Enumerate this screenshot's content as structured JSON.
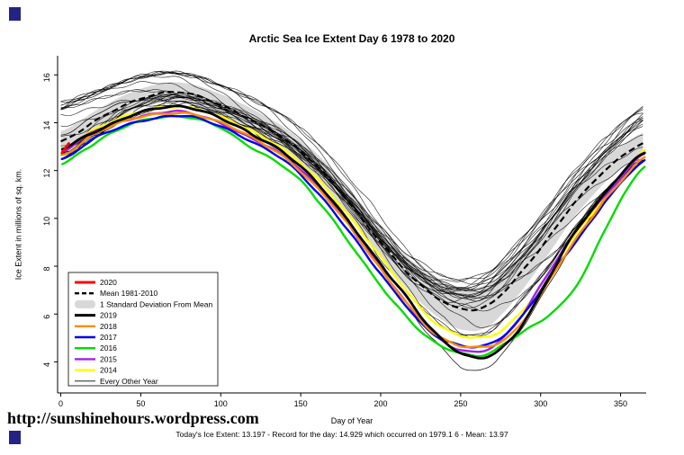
{
  "corner_mark_color": "#232384",
  "chart_data": {
    "type": "line",
    "title": "Arctic Sea Ice Extent Day 6 1978 to 2020",
    "xlabel": "Day of Year",
    "ylabel": "Ice Extent in millions of sq. km.",
    "xlim": [
      -2,
      366
    ],
    "ylim": [
      2.7,
      16.8
    ],
    "xticks": [
      0,
      50,
      100,
      150,
      200,
      250,
      300,
      350
    ],
    "yticks": [
      4,
      6,
      8,
      10,
      12,
      14,
      16
    ],
    "grid": false,
    "legend_position": "left-middle",
    "band": {
      "name": "1 Standard Deviation From Mean",
      "color": "#D8D8D8",
      "sd_points": [
        [
          0,
          0.45
        ],
        [
          50,
          0.4
        ],
        [
          100,
          0.45
        ],
        [
          150,
          0.5
        ],
        [
          200,
          0.6
        ],
        [
          230,
          0.75
        ],
        [
          255,
          0.9
        ],
        [
          275,
          0.85
        ],
        [
          300,
          0.7
        ],
        [
          330,
          0.55
        ],
        [
          365,
          0.45
        ]
      ]
    },
    "mean": {
      "name": "Mean 1981-2010",
      "style": "dashed",
      "color": "#000000",
      "points": [
        [
          0,
          13.2
        ],
        [
          25,
          14.2
        ],
        [
          45,
          14.9
        ],
        [
          65,
          15.25
        ],
        [
          80,
          15.2
        ],
        [
          100,
          14.75
        ],
        [
          120,
          14.1
        ],
        [
          140,
          13.3
        ],
        [
          160,
          12.2
        ],
        [
          180,
          10.7
        ],
        [
          200,
          9.0
        ],
        [
          220,
          7.5
        ],
        [
          240,
          6.5
        ],
        [
          255,
          6.2
        ],
        [
          265,
          6.3
        ],
        [
          275,
          6.8
        ],
        [
          290,
          7.9
        ],
        [
          305,
          9.2
        ],
        [
          320,
          10.6
        ],
        [
          340,
          12.0
        ],
        [
          365,
          13.15
        ]
      ]
    },
    "series": [
      {
        "name": "2014",
        "color": "#FFFF00",
        "width": 2.4,
        "points": [
          [
            1,
            12.9
          ],
          [
            20,
            13.7
          ],
          [
            40,
            14.25
          ],
          [
            60,
            14.6
          ],
          [
            80,
            14.65
          ],
          [
            100,
            14.25
          ],
          [
            120,
            13.6
          ],
          [
            140,
            12.85
          ],
          [
            160,
            11.7
          ],
          [
            180,
            10.1
          ],
          [
            200,
            8.4
          ],
          [
            215,
            7.1
          ],
          [
            230,
            5.9
          ],
          [
            245,
            5.2
          ],
          [
            258,
            5.0
          ],
          [
            270,
            5.1
          ],
          [
            282,
            5.7
          ],
          [
            295,
            6.7
          ],
          [
            310,
            8.2
          ],
          [
            325,
            9.6
          ],
          [
            340,
            10.9
          ],
          [
            365,
            12.85
          ]
        ]
      },
      {
        "name": "2015",
        "color": "#A020F0",
        "width": 2.4,
        "points": [
          [
            1,
            12.8
          ],
          [
            20,
            13.6
          ],
          [
            40,
            14.1
          ],
          [
            60,
            14.4
          ],
          [
            75,
            14.45
          ],
          [
            95,
            14.1
          ],
          [
            115,
            13.5
          ],
          [
            135,
            12.8
          ],
          [
            155,
            11.7
          ],
          [
            175,
            10.2
          ],
          [
            195,
            8.4
          ],
          [
            210,
            7.0
          ],
          [
            225,
            5.7
          ],
          [
            240,
            4.8
          ],
          [
            252,
            4.5
          ],
          [
            263,
            4.45
          ],
          [
            275,
            4.9
          ],
          [
            288,
            5.9
          ],
          [
            302,
            7.4
          ],
          [
            316,
            8.9
          ],
          [
            330,
            10.2
          ],
          [
            345,
            11.3
          ],
          [
            365,
            12.7
          ]
        ]
      },
      {
        "name": "2016",
        "color": "#00DD00",
        "width": 2.4,
        "points": [
          [
            1,
            12.3
          ],
          [
            15,
            12.9
          ],
          [
            30,
            13.5
          ],
          [
            45,
            13.95
          ],
          [
            60,
            14.2
          ],
          [
            80,
            14.25
          ],
          [
            100,
            13.8
          ],
          [
            115,
            13.1
          ],
          [
            130,
            12.55
          ],
          [
            145,
            11.9
          ],
          [
            160,
            10.8
          ],
          [
            180,
            9.0
          ],
          [
            200,
            7.2
          ],
          [
            215,
            6.0
          ],
          [
            230,
            5.0
          ],
          [
            245,
            4.45
          ],
          [
            258,
            4.25
          ],
          [
            268,
            4.35
          ],
          [
            280,
            4.9
          ],
          [
            292,
            5.4
          ],
          [
            304,
            5.9
          ],
          [
            316,
            6.6
          ],
          [
            328,
            7.8
          ],
          [
            340,
            9.5
          ],
          [
            352,
            11.0
          ],
          [
            365,
            12.2
          ]
        ]
      },
      {
        "name": "2017",
        "color": "#0000EE",
        "width": 2.4,
        "points": [
          [
            1,
            12.45
          ],
          [
            20,
            13.3
          ],
          [
            40,
            13.9
          ],
          [
            60,
            14.2
          ],
          [
            80,
            14.25
          ],
          [
            100,
            13.85
          ],
          [
            120,
            13.2
          ],
          [
            140,
            12.4
          ],
          [
            160,
            11.1
          ],
          [
            180,
            9.5
          ],
          [
            200,
            7.7
          ],
          [
            215,
            6.4
          ],
          [
            230,
            5.3
          ],
          [
            245,
            4.8
          ],
          [
            258,
            4.65
          ],
          [
            270,
            4.8
          ],
          [
            282,
            5.4
          ],
          [
            295,
            6.5
          ],
          [
            310,
            8.0
          ],
          [
            325,
            9.3
          ],
          [
            340,
            10.7
          ],
          [
            365,
            12.4
          ]
        ]
      },
      {
        "name": "2018",
        "color": "#FF8C00",
        "width": 2.4,
        "points": [
          [
            1,
            12.65
          ],
          [
            20,
            13.5
          ],
          [
            40,
            14.05
          ],
          [
            60,
            14.35
          ],
          [
            80,
            14.4
          ],
          [
            100,
            14.0
          ],
          [
            120,
            13.35
          ],
          [
            140,
            12.55
          ],
          [
            160,
            11.3
          ],
          [
            180,
            9.7
          ],
          [
            200,
            7.9
          ],
          [
            215,
            6.6
          ],
          [
            230,
            5.4
          ],
          [
            245,
            4.75
          ],
          [
            258,
            4.6
          ],
          [
            270,
            4.7
          ],
          [
            282,
            5.2
          ],
          [
            295,
            6.3
          ],
          [
            310,
            7.9
          ],
          [
            325,
            9.4
          ],
          [
            340,
            10.8
          ],
          [
            365,
            12.55
          ]
        ]
      },
      {
        "name": "2019",
        "color": "#000000",
        "width": 2.8,
        "points": [
          [
            1,
            12.9
          ],
          [
            15,
            13.4
          ],
          [
            30,
            13.9
          ],
          [
            45,
            14.35
          ],
          [
            60,
            14.6
          ],
          [
            75,
            14.65
          ],
          [
            90,
            14.45
          ],
          [
            105,
            14.05
          ],
          [
            120,
            13.5
          ],
          [
            140,
            12.7
          ],
          [
            160,
            11.5
          ],
          [
            180,
            9.9
          ],
          [
            200,
            8.1
          ],
          [
            215,
            6.8
          ],
          [
            230,
            5.5
          ],
          [
            245,
            4.6
          ],
          [
            258,
            4.2
          ],
          [
            268,
            4.25
          ],
          [
            278,
            4.7
          ],
          [
            290,
            5.7
          ],
          [
            305,
            7.5
          ],
          [
            320,
            9.3
          ],
          [
            335,
            10.6
          ],
          [
            350,
            11.8
          ],
          [
            365,
            12.75
          ]
        ]
      },
      {
        "name": "2020",
        "color": "#FF0000",
        "width": 3,
        "points": [
          [
            1,
            12.8
          ],
          [
            2,
            12.9
          ],
          [
            4,
            13.05
          ],
          [
            6,
            13.197
          ]
        ]
      }
    ],
    "background": {
      "name": "Every Other Year",
      "color": "#000000",
      "count": 24,
      "upper_offset": [
        [
          0,
          1.6
        ],
        [
          30,
          1.1
        ],
        [
          60,
          0.85
        ],
        [
          90,
          0.8
        ],
        [
          130,
          0.9
        ],
        [
          170,
          1.0
        ],
        [
          210,
          1.3
        ],
        [
          240,
          1.7
        ],
        [
          260,
          1.9
        ],
        [
          280,
          1.8
        ],
        [
          310,
          1.5
        ],
        [
          340,
          1.3
        ],
        [
          365,
          1.5
        ]
      ],
      "lower_offset": [
        [
          0,
          0.7
        ],
        [
          40,
          0.6
        ],
        [
          80,
          0.55
        ],
        [
          130,
          0.6
        ],
        [
          170,
          0.7
        ],
        [
          210,
          0.8
        ],
        [
          240,
          1.0
        ],
        [
          260,
          1.1
        ],
        [
          280,
          1.1
        ],
        [
          310,
          1.2
        ],
        [
          340,
          0.9
        ],
        [
          365,
          0.7
        ]
      ],
      "record_low": {
        "points": [
          [
            0,
            13.5
          ],
          [
            30,
            14.6
          ],
          [
            60,
            15.0
          ],
          [
            90,
            14.6
          ],
          [
            120,
            13.6
          ],
          [
            150,
            12.1
          ],
          [
            180,
            9.9
          ],
          [
            200,
            8.0
          ],
          [
            220,
            6.0
          ],
          [
            235,
            4.8
          ],
          [
            248,
            3.9
          ],
          [
            256,
            3.62
          ],
          [
            264,
            3.7
          ],
          [
            275,
            4.3
          ],
          [
            290,
            5.6
          ],
          [
            305,
            7.2
          ],
          [
            320,
            8.9
          ],
          [
            340,
            11.0
          ],
          [
            365,
            12.5
          ]
        ]
      }
    }
  },
  "legend": {
    "items": [
      {
        "label": "2020",
        "swatch": "line",
        "color": "#FF0000",
        "width": 3
      },
      {
        "label": "Mean 1981-2010",
        "swatch": "dashed",
        "color": "#000000",
        "width": 2.4
      },
      {
        "label": "1 Standard Deviation From Mean",
        "swatch": "band",
        "color": "#D8D8D8"
      },
      {
        "label": "2019",
        "swatch": "line",
        "color": "#000000",
        "width": 3
      },
      {
        "label": "2018",
        "swatch": "line",
        "color": "#FF8C00",
        "width": 2.4
      },
      {
        "label": "2017",
        "swatch": "line",
        "color": "#0000EE",
        "width": 2.4
      },
      {
        "label": "2016",
        "swatch": "line",
        "color": "#00DD00",
        "width": 2.4
      },
      {
        "label": "2015",
        "swatch": "line",
        "color": "#A020F0",
        "width": 2.4
      },
      {
        "label": "2014",
        "swatch": "line",
        "color": "#FFFF00",
        "width": 2.4
      },
      {
        "label": "Every Other Year",
        "swatch": "line",
        "color": "#000000",
        "width": 0.8
      }
    ]
  },
  "footer": {
    "url": "http://sunshinehours.wordpress.com",
    "caption": "Today's Ice Extent: 13.197  - Record for the day: 14.929 which occurred on 1979.1 6  - Mean: 13.97"
  }
}
